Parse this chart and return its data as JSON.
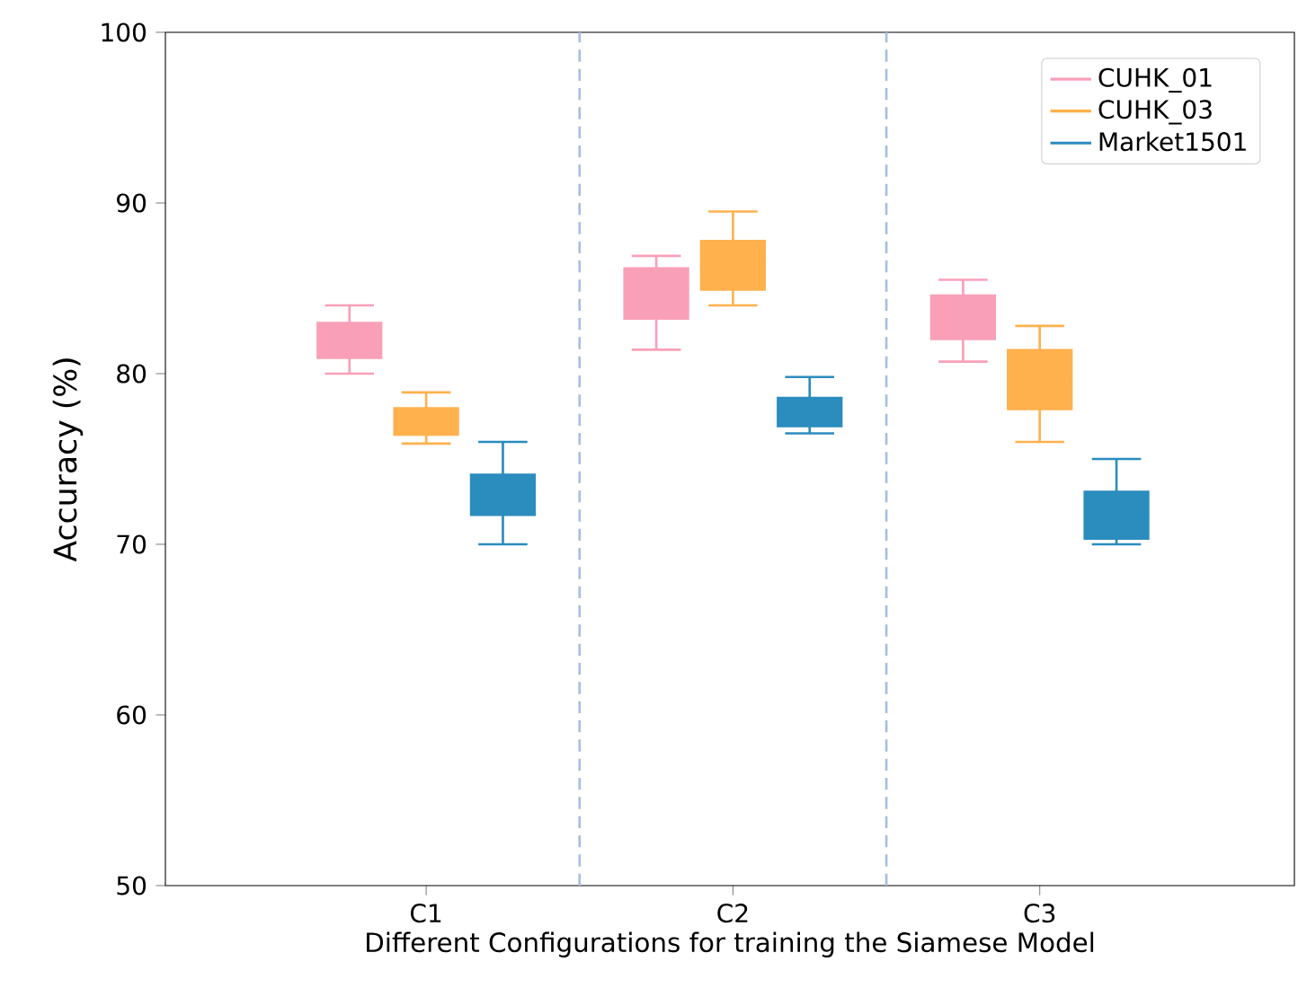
{
  "chart_data": {
    "type": "box",
    "xlabel": "Different Configurations for training the Siamese Model",
    "ylabel": "Accuracy (%)",
    "categories": [
      "C1",
      "C2",
      "C3"
    ],
    "ylim": [
      50,
      100
    ],
    "yticks": [
      50,
      60,
      70,
      80,
      90,
      100
    ],
    "legend": "top right",
    "grid": false,
    "series": [
      {
        "name": "CUHK_01",
        "color": "#f9a0b8",
        "boxes": [
          {
            "low": 80.0,
            "q1": 80.9,
            "median": 82.0,
            "q3": 83.0,
            "high": 84.0
          },
          {
            "low": 81.4,
            "q1": 83.2,
            "median": 84.7,
            "q3": 86.2,
            "high": 86.9
          },
          {
            "low": 80.7,
            "q1": 82.0,
            "median": 83.3,
            "q3": 84.6,
            "high": 85.5
          }
        ]
      },
      {
        "name": "CUHK_03",
        "color": "#ffb14e",
        "boxes": [
          {
            "low": 75.9,
            "q1": 76.4,
            "median": 77.2,
            "q3": 78.0,
            "high": 78.9
          },
          {
            "low": 84.0,
            "q1": 84.9,
            "median": 86.4,
            "q3": 87.8,
            "high": 89.5
          },
          {
            "low": 76.0,
            "q1": 77.9,
            "median": 79.7,
            "q3": 81.4,
            "high": 82.8
          }
        ]
      },
      {
        "name": "Market1501",
        "color": "#2b8cbe",
        "boxes": [
          {
            "low": 70.0,
            "q1": 71.7,
            "median": 72.9,
            "q3": 74.1,
            "high": 76.0
          },
          {
            "low": 76.5,
            "q1": 76.9,
            "median": 77.8,
            "q3": 78.6,
            "high": 79.8
          },
          {
            "low": 70.0,
            "q1": 70.3,
            "median": 71.7,
            "q3": 73.1,
            "high": 75.0
          }
        ]
      }
    ]
  }
}
